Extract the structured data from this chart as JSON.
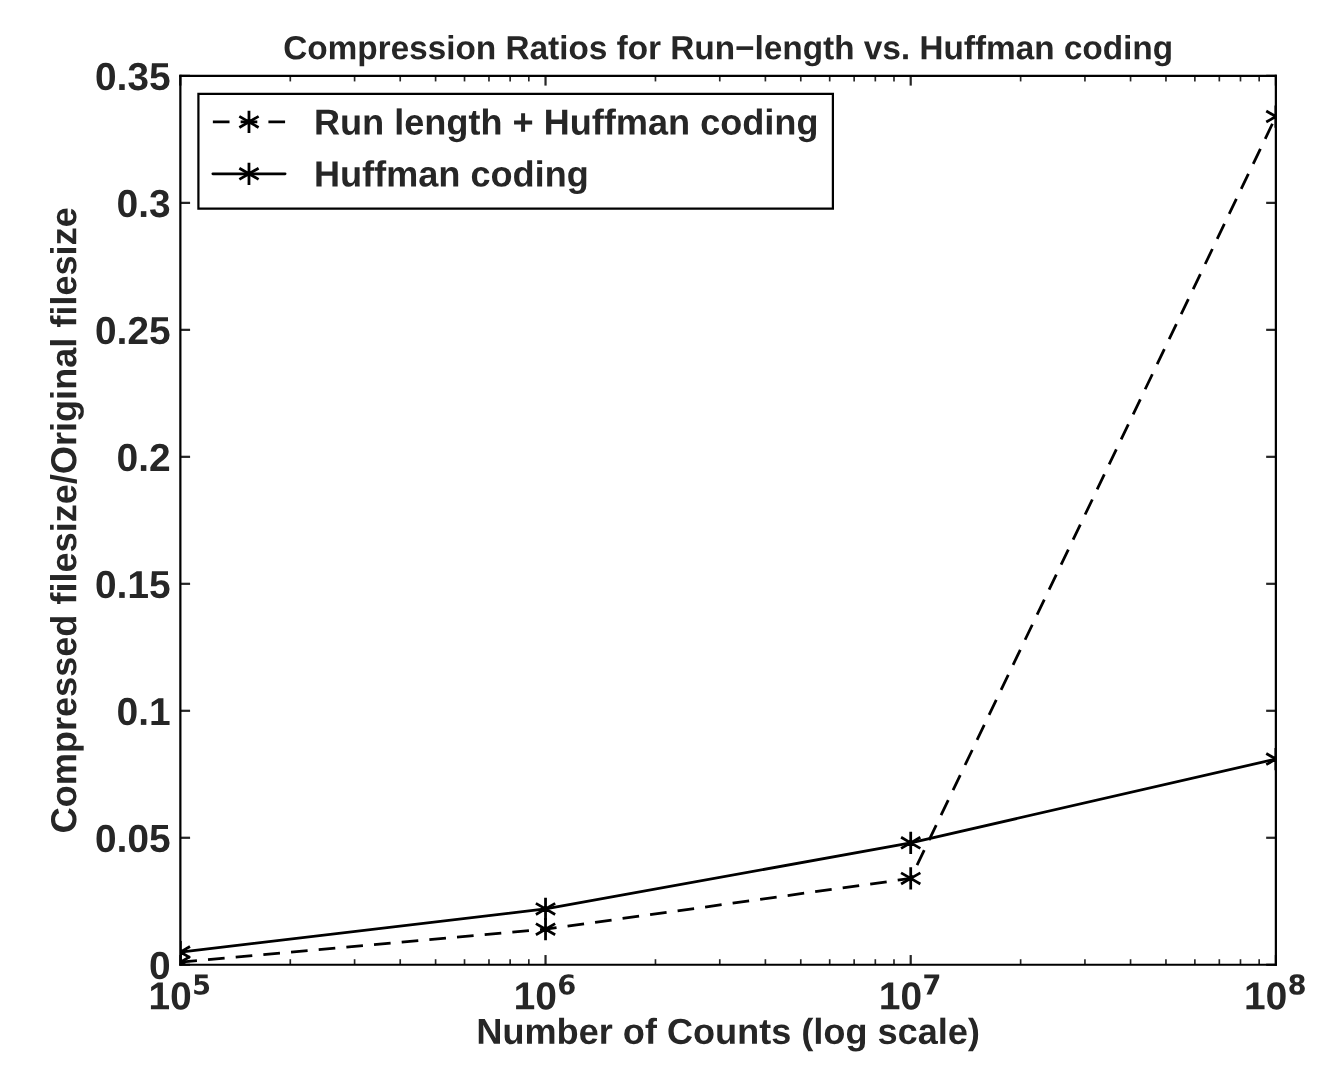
{
  "chart_data": {
    "type": "line",
    "title": "Compression Ratios for Run−length vs. Huffman coding",
    "xlabel": "Number of Counts (log scale)",
    "ylabel": "Compressed filesize/Original filesize",
    "x": [
      100000,
      1000000,
      10000000,
      100000000
    ],
    "series": [
      {
        "name": "Run length + Huffman coding",
        "color": "#000000",
        "line_style": "dashed",
        "marker": "cross",
        "values": [
          0.001,
          0.014,
          0.034,
          0.334
        ]
      },
      {
        "name": "Huffman coding",
        "color": "#000000",
        "line_style": "solid",
        "marker": "cross",
        "values": [
          0.005,
          0.022,
          0.048,
          0.081
        ]
      }
    ],
    "log": "x",
    "xlim": [
      100000,
      100000000
    ],
    "xticks": [
      {
        "value": 100000,
        "label": "10$^{5}$"
      },
      {
        "value": 1000000,
        "label": "10$^{6}$"
      },
      {
        "value": 10000000,
        "label": "10$^{7}$"
      },
      {
        "value": 100000000,
        "label": "10$^{8}$"
      }
    ],
    "ylim": [
      0,
      0.35
    ],
    "yticks": [
      0,
      0.05,
      0.1,
      0.15,
      0.2,
      0.25,
      0.3,
      0.35
    ],
    "grid": false,
    "legend": "top left"
  }
}
